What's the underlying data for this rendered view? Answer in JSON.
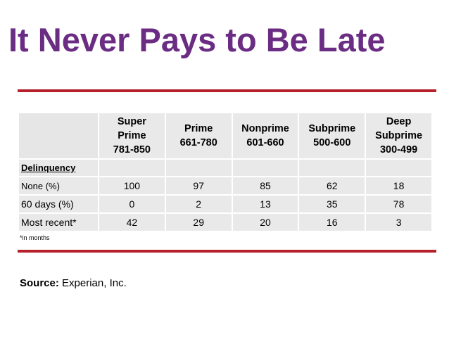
{
  "title": "It Never Pays to Be Late",
  "table": {
    "headers": [
      {
        "line1": "Super",
        "line2": "Prime",
        "line3": "781-850"
      },
      {
        "line1": "Prime",
        "line2": "661-780",
        "line3": ""
      },
      {
        "line1": "Nonprime",
        "line2": "601-660",
        "line3": ""
      },
      {
        "line1": "Subprime",
        "line2": "500-600",
        "line3": ""
      },
      {
        "line1": "Deep",
        "line2": "Subprime",
        "line3": "300-499"
      }
    ],
    "section_label": "Delinquency",
    "rows": [
      {
        "label": "None (%)",
        "values": [
          "100",
          "97",
          "85",
          "62",
          "18"
        ]
      },
      {
        "label": "60 days (%)",
        "values": [
          "0",
          "2",
          "13",
          "35",
          "78"
        ]
      },
      {
        "label": "Most recent*",
        "values": [
          "42",
          "29",
          "20",
          "16",
          "3"
        ]
      }
    ]
  },
  "footnote": "*in months",
  "source": {
    "label": "Source:",
    "text": "Experian, Inc."
  },
  "colors": {
    "title": "#6b2d83",
    "rule": "#b5202a",
    "cell": "#e9e9e9"
  }
}
